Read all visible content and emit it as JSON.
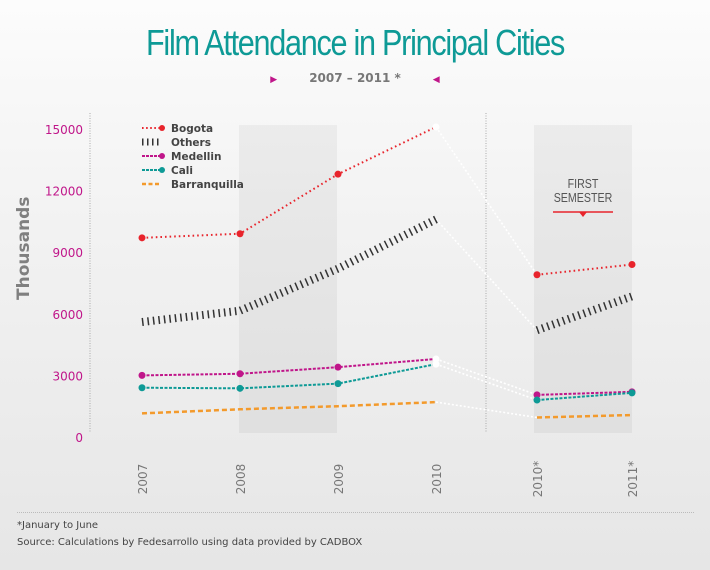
{
  "chart_data": {
    "type": "line",
    "title": "Film Attendance in Principal Cities",
    "subtitle": "2007 –  2011 *",
    "xlabel": "",
    "ylabel": "Thousands",
    "ylim": [
      0,
      15000
    ],
    "yticks": [
      "0",
      "3000",
      "6000",
      "9000",
      "12000",
      "15000"
    ],
    "categories": [
      "2007",
      "2008",
      "2009",
      "2010",
      "2010*",
      "2011*"
    ],
    "annotation": "FIRST SEMESTER",
    "annotation_lines": [
      "FIRST",
      "SEMESTER"
    ],
    "legend_position": "top-left",
    "series": [
      {
        "name": "Bogota",
        "color": "#e8242c",
        "style": "dotted-marker",
        "values": [
          9700,
          9900,
          12800,
          15100,
          7900,
          8400
        ]
      },
      {
        "name": "Others",
        "color": "#333333",
        "style": "ticks",
        "values": [
          5600,
          6150,
          8200,
          10600,
          5200,
          6850
        ]
      },
      {
        "name": "Medellin",
        "color": "#c0168a",
        "style": "solid-marker",
        "values": [
          3000,
          3080,
          3400,
          3800,
          2050,
          2200
        ]
      },
      {
        "name": "Cali",
        "color": "#0e9a96",
        "style": "solid-marker",
        "values": [
          2400,
          2370,
          2600,
          3550,
          1800,
          2150
        ]
      },
      {
        "name": "Barranquilla",
        "color": "#f39a2c",
        "style": "dashed",
        "values": [
          1150,
          1350,
          1500,
          1700,
          950,
          1070
        ]
      }
    ],
    "grid": false
  },
  "footnotes": {
    "note": "*January to June",
    "source": "Source: Calculations by Fedesarrollo using data provided by CADBOX"
  },
  "colors": {
    "title": "#0e9a96",
    "tick": "#c0168a",
    "axis_label": "#808080"
  }
}
